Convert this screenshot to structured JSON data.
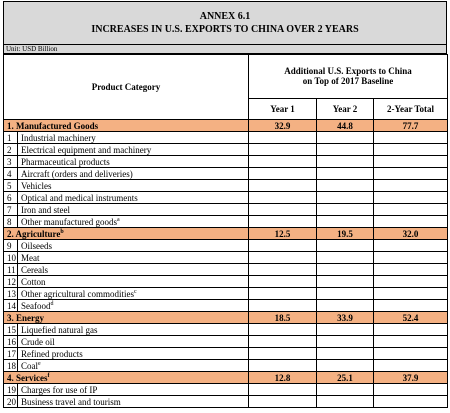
{
  "title": {
    "line1": "ANNEX 6.1",
    "line2": "INCREASES IN U.S. EXPORTS TO CHINA OVER 2 YEARS"
  },
  "unit": "Unit: USD Billion",
  "header": {
    "category": "Product Category",
    "group_line1": "Additional U.S. Exports to China",
    "group_line2": "on Top of 2017 Baseline",
    "columns": [
      "Year 1",
      "Year 2",
      "2-Year Total"
    ]
  },
  "sections": [
    {
      "name": "1. Manufactured Goods",
      "values": [
        "32.9",
        "44.8",
        "77.7"
      ],
      "items": [
        {
          "no": "1",
          "label": "Industrial machinery"
        },
        {
          "no": "2",
          "label": "Electrical equipment and machinery"
        },
        {
          "no": "3",
          "label": "Pharmaceutical products"
        },
        {
          "no": "4",
          "label": "Aircraft (orders and deliveries)"
        },
        {
          "no": "5",
          "label": "Vehicles"
        },
        {
          "no": "6",
          "label": "Optical and medical instruments"
        },
        {
          "no": "7",
          "label": "Iron and steel"
        },
        {
          "no": "8",
          "label": "Other manufactured goods",
          "note": "a"
        }
      ]
    },
    {
      "name": "2. Agriculture",
      "note": "b",
      "values": [
        "12.5",
        "19.5",
        "32.0"
      ],
      "items": [
        {
          "no": "9",
          "label": "Oilseeds"
        },
        {
          "no": "10",
          "label": "Meat"
        },
        {
          "no": "11",
          "label": "Cereals"
        },
        {
          "no": "12",
          "label": "Cotton"
        },
        {
          "no": "13",
          "label": "Other agricultural commodities",
          "note": "c"
        },
        {
          "no": "14",
          "label": "Seafood",
          "note": "d"
        }
      ]
    },
    {
      "name": "3. Energy",
      "values": [
        "18.5",
        "33.9",
        "52.4"
      ],
      "items": [
        {
          "no": "15",
          "label": "Liquefied natural gas"
        },
        {
          "no": "16",
          "label": "Crude oil"
        },
        {
          "no": "17",
          "label": "Refined products"
        },
        {
          "no": "18",
          "label": "Coal",
          "note": "e"
        }
      ]
    },
    {
      "name": "4. Services",
      "note": "f",
      "values": [
        "12.8",
        "25.1",
        "37.9"
      ],
      "items": [
        {
          "no": "19",
          "label": "Charges for use of IP"
        },
        {
          "no": "20",
          "label": "Business travel and tourism"
        }
      ]
    }
  ]
}
